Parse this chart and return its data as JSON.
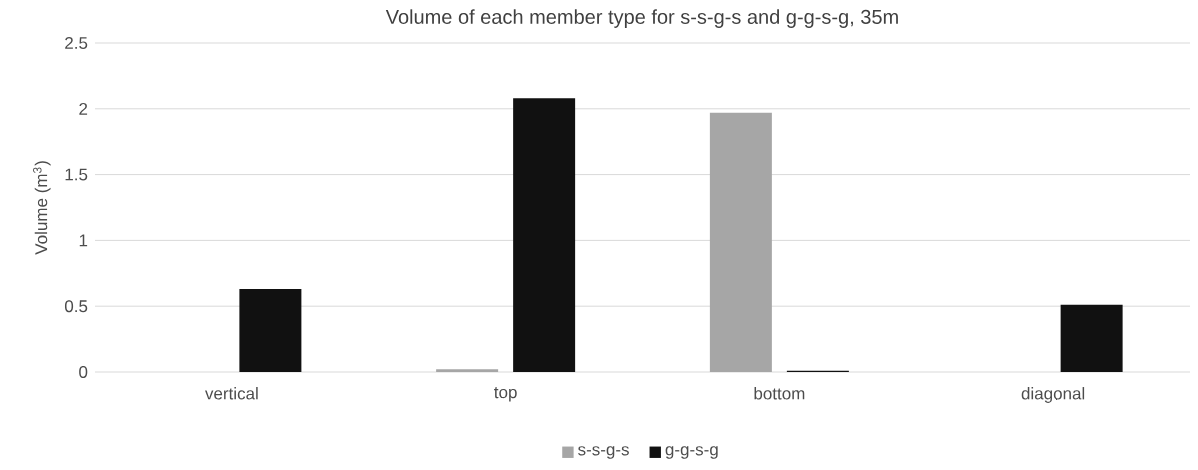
{
  "chart_data": {
    "type": "bar",
    "title": "Volume of each member type for s-s-g-s and g-g-s-g, 35m",
    "ylabel": "Volume (m$^{3}$)",
    "categories": [
      "vertical",
      "top",
      "bottom",
      "diagonal"
    ],
    "series": [
      {
        "name": "s-s-g-s",
        "color": "#a6a6a6",
        "values": [
          null,
          0.02,
          1.97,
          null
        ]
      },
      {
        "name": "g-g-s-g",
        "color": "#111111",
        "values": [
          0.63,
          2.08,
          0.01,
          0.51
        ]
      }
    ],
    "ylim": [
      0,
      2.5
    ],
    "yticks": [
      0,
      0.5,
      1,
      1.5,
      2,
      2.5
    ],
    "grid": "y",
    "legend": "bottom"
  }
}
